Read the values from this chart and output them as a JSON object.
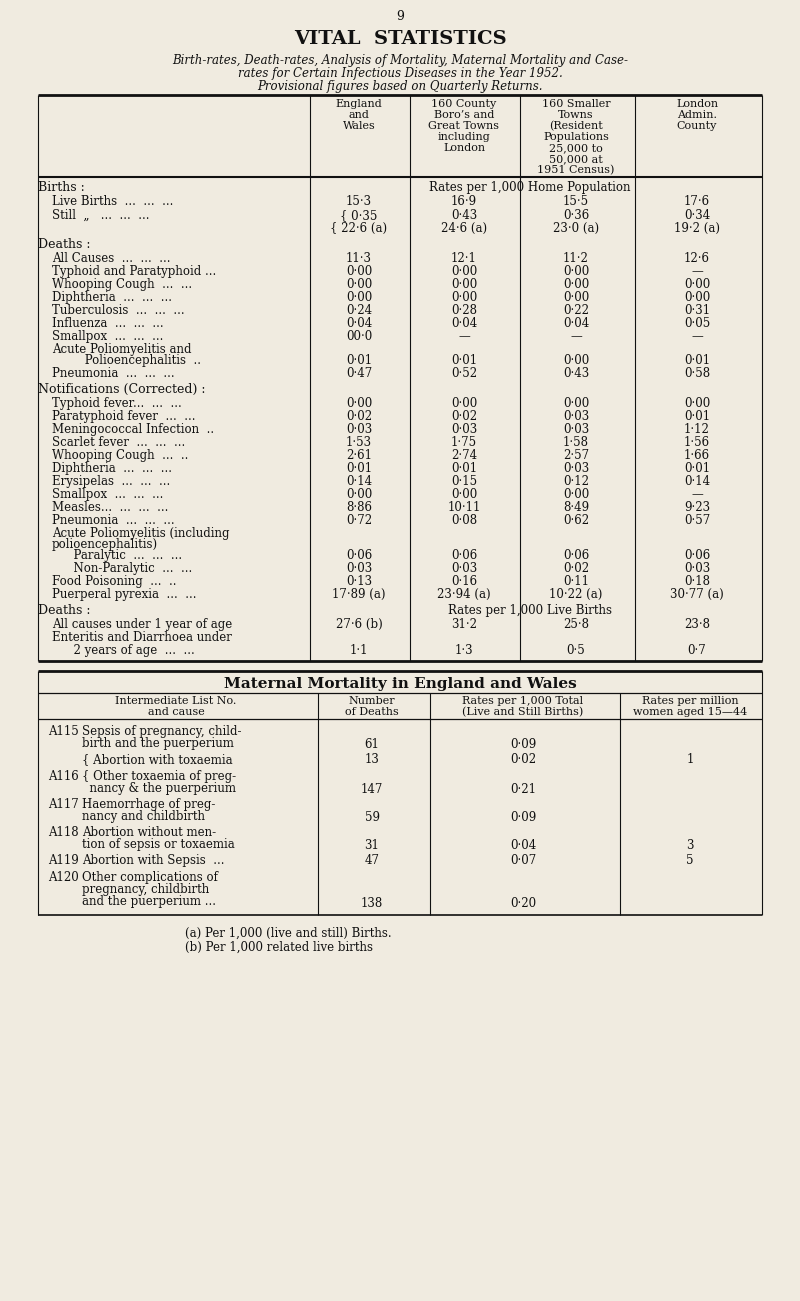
{
  "page_num": "9",
  "title": "VITAL  STATISTICS",
  "subtitle_line1": "Birth-rates, Death-rates, Analysis of Mortality, Maternal Mortality and Case-",
  "subtitle_line2": "rates for Certain Infectious Diseases in the Year 1952.",
  "subtitle_line3": "Provisional figures based on Quarterly Returns.",
  "bg_color": "#f0ebe0",
  "footnote_a": "(a) Per 1,000 (live and still) Births.",
  "footnote_b": "(b) Per 1,000 related live births"
}
